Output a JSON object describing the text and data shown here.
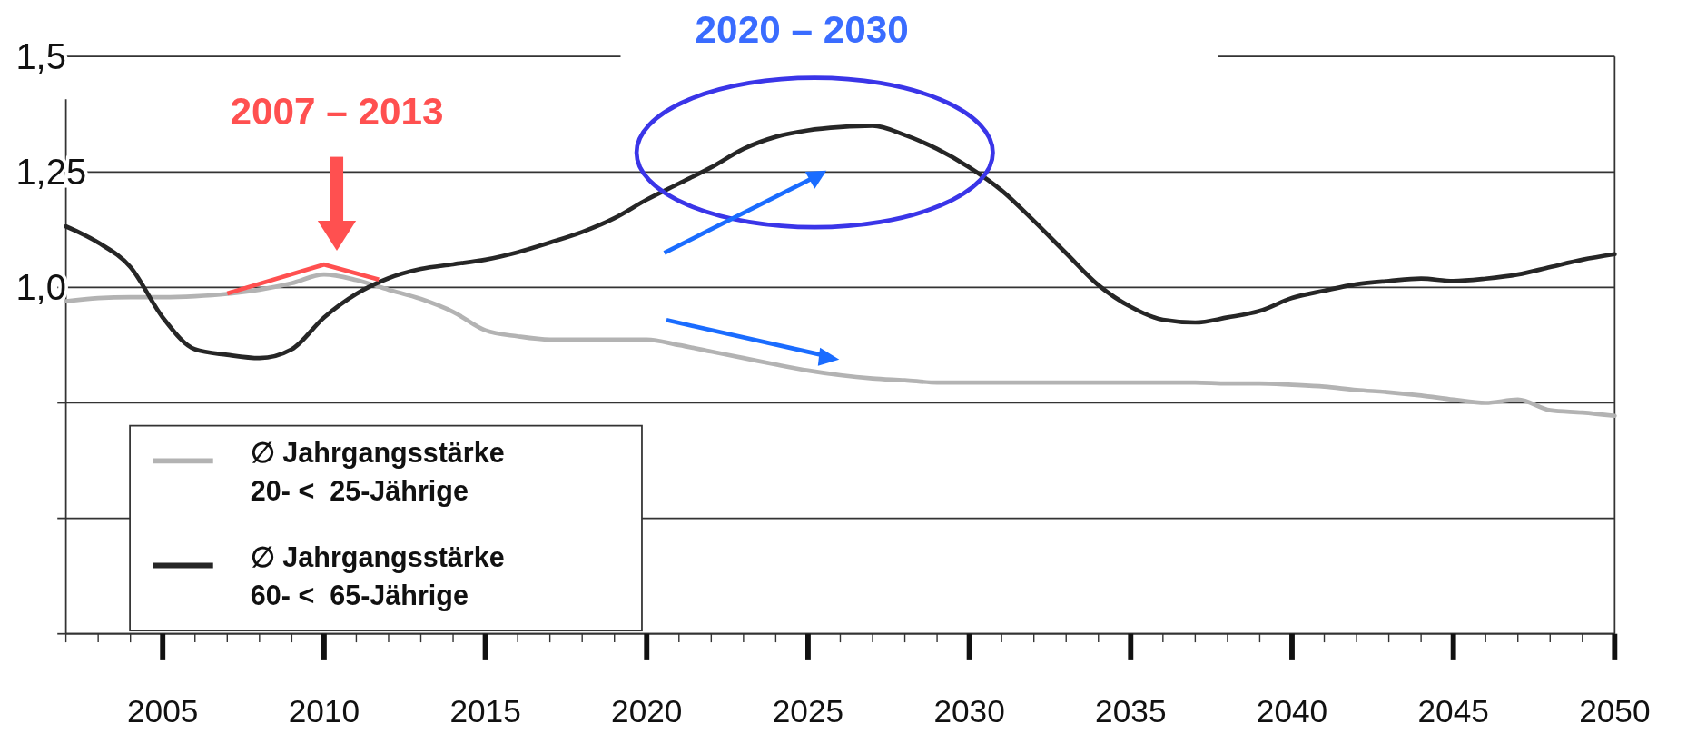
{
  "chart_data": {
    "type": "line",
    "x": [
      2002,
      2003,
      2004,
      2005,
      2006,
      2007,
      2008,
      2009,
      2010,
      2011,
      2012,
      2013,
      2014,
      2015,
      2016,
      2017,
      2018,
      2019,
      2020,
      2021,
      2022,
      2023,
      2024,
      2025,
      2026,
      2027,
      2028,
      2029,
      2030,
      2031,
      2032,
      2033,
      2034,
      2035,
      2036,
      2037,
      2038,
      2039,
      2040,
      2041,
      2042,
      2043,
      2044,
      2045,
      2046,
      2047,
      2048,
      2049,
      2050
    ],
    "series": [
      {
        "name": "∅ Jahrgangsstärke\n20- <  25-Jährige",
        "color": "#b3b3b3",
        "values": [
          0.97,
          0.977,
          0.979,
          0.979,
          0.981,
          0.986,
          0.995,
          1.009,
          1.028,
          1.016,
          0.995,
          0.975,
          0.947,
          0.907,
          0.894,
          0.887,
          0.887,
          0.887,
          0.887,
          0.875,
          0.861,
          0.847,
          0.833,
          0.82,
          0.81,
          0.803,
          0.799,
          0.794,
          0.794,
          0.794,
          0.794,
          0.794,
          0.794,
          0.794,
          0.794,
          0.794,
          0.792,
          0.792,
          0.789,
          0.785,
          0.778,
          0.773,
          0.766,
          0.757,
          0.75,
          0.757,
          0.734,
          0.729,
          0.722
        ]
      },
      {
        "name": "∅ Jahrgangsstärke\n60- <  65-Jährige",
        "color": "#262626",
        "values": [
          1.132,
          1.097,
          1.044,
          0.935,
          0.866,
          0.854,
          0.847,
          0.866,
          0.935,
          0.986,
          1.02,
          1.04,
          1.05,
          1.06,
          1.076,
          1.097,
          1.12,
          1.15,
          1.19,
          1.225,
          1.26,
          1.3,
          1.326,
          1.34,
          1.347,
          1.35,
          1.33,
          1.3,
          1.26,
          1.21,
          1.144,
          1.074,
          1.005,
          0.958,
          0.93,
          0.924,
          0.935,
          0.949,
          0.977,
          0.993,
          1.007,
          1.014,
          1.019,
          1.014,
          1.019,
          1.028,
          1.044,
          1.06,
          1.072
        ]
      }
    ],
    "xlim": [
      2002,
      2050
    ],
    "xticks": [
      2005,
      2010,
      2015,
      2020,
      2025,
      2030,
      2035,
      2040,
      2045,
      2050
    ],
    "ylim": [
      0.25,
      1.5
    ],
    "yticks": [
      {
        "value": 0.25,
        "label": null
      },
      {
        "value": 0.5,
        "label": null
      },
      {
        "value": 0.75,
        "label": null
      },
      {
        "value": 1.0,
        "label": "1,0"
      },
      {
        "value": 1.25,
        "label": "1,25"
      },
      {
        "value": 1.5,
        "label": "1,5"
      }
    ],
    "grid": "y",
    "legend": "bottom left",
    "annotations": [
      "2007 – 2013",
      "2020 – 2030"
    ]
  }
}
